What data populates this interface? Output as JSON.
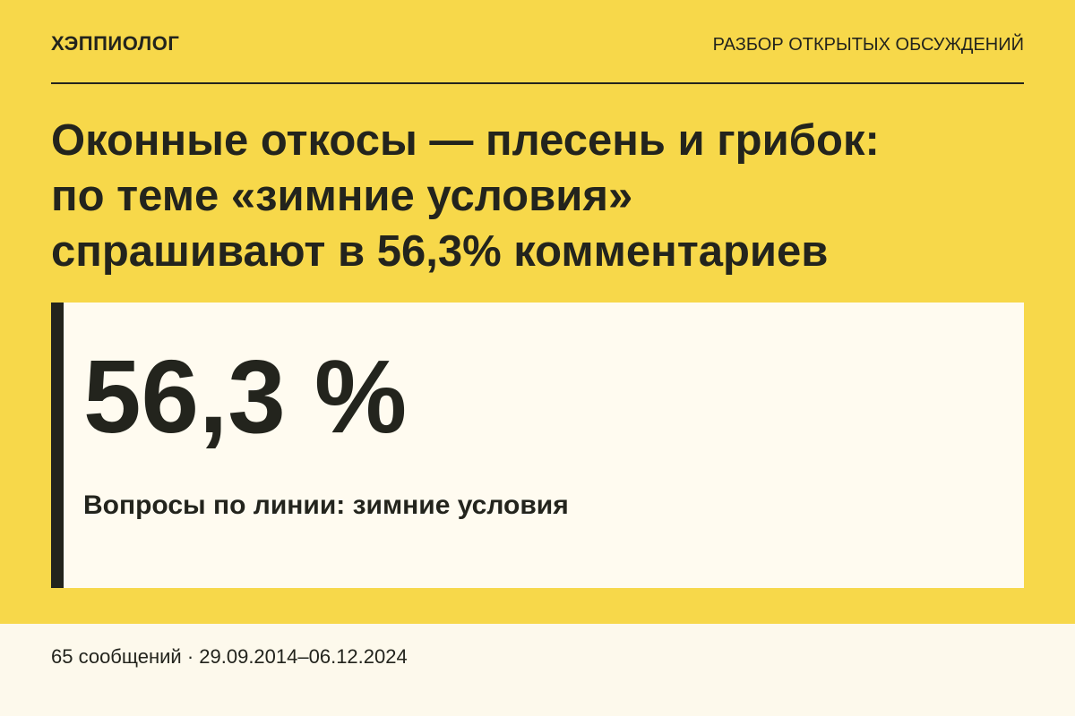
{
  "header": {
    "brand": "ХЭППИОЛОГ",
    "section": "РАЗБОР ОТКРЫТЫХ ОБСУЖДЕНИЙ"
  },
  "title": {
    "lines": [
      "Оконные откосы — плесень и грибок:",
      "по теме «зимние условия»",
      "спрашивают в 56,3% комментариев"
    ]
  },
  "card": {
    "stat": "56,3 %",
    "label": "Вопросы по линии: зимние условия"
  },
  "footer": {
    "text": "65 сообщений · 29.09.2014–06.12.2024"
  }
}
